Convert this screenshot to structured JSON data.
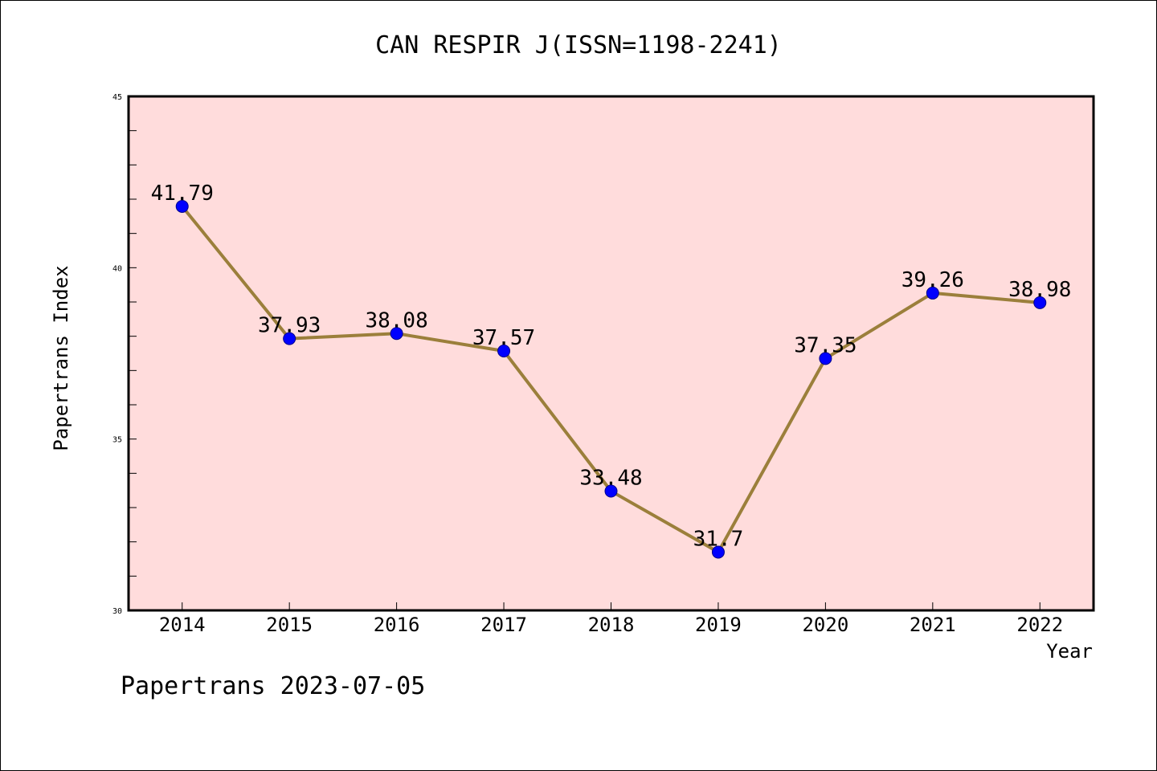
{
  "chart_data": {
    "type": "line",
    "title": "CAN RESPIR J(ISSN=1198-2241)",
    "xlabel": "Year",
    "ylabel": "Papertrans Index",
    "categories": [
      "2014",
      "2015",
      "2016",
      "2017",
      "2018",
      "2019",
      "2020",
      "2021",
      "2022"
    ],
    "series": [
      {
        "values": [
          41.79,
          37.93,
          38.08,
          37.57,
          33.48,
          31.7,
          37.35,
          39.26,
          38.98
        ],
        "labels": [
          "41.79",
          "37.93",
          "38.08",
          "37.57",
          "33.48",
          "31.7",
          "37.35",
          "39.26",
          "38.98"
        ],
        "line_color": "#9b7f3b",
        "marker_color": "#0000ff"
      }
    ],
    "ylim": [
      30,
      45
    ],
    "yticks": [
      "30",
      "35",
      "40",
      "45"
    ],
    "plot_background": "#ffdcdc",
    "grid": false,
    "legend": "none"
  },
  "footer": {
    "text": "Papertrans 2023-07-05"
  }
}
